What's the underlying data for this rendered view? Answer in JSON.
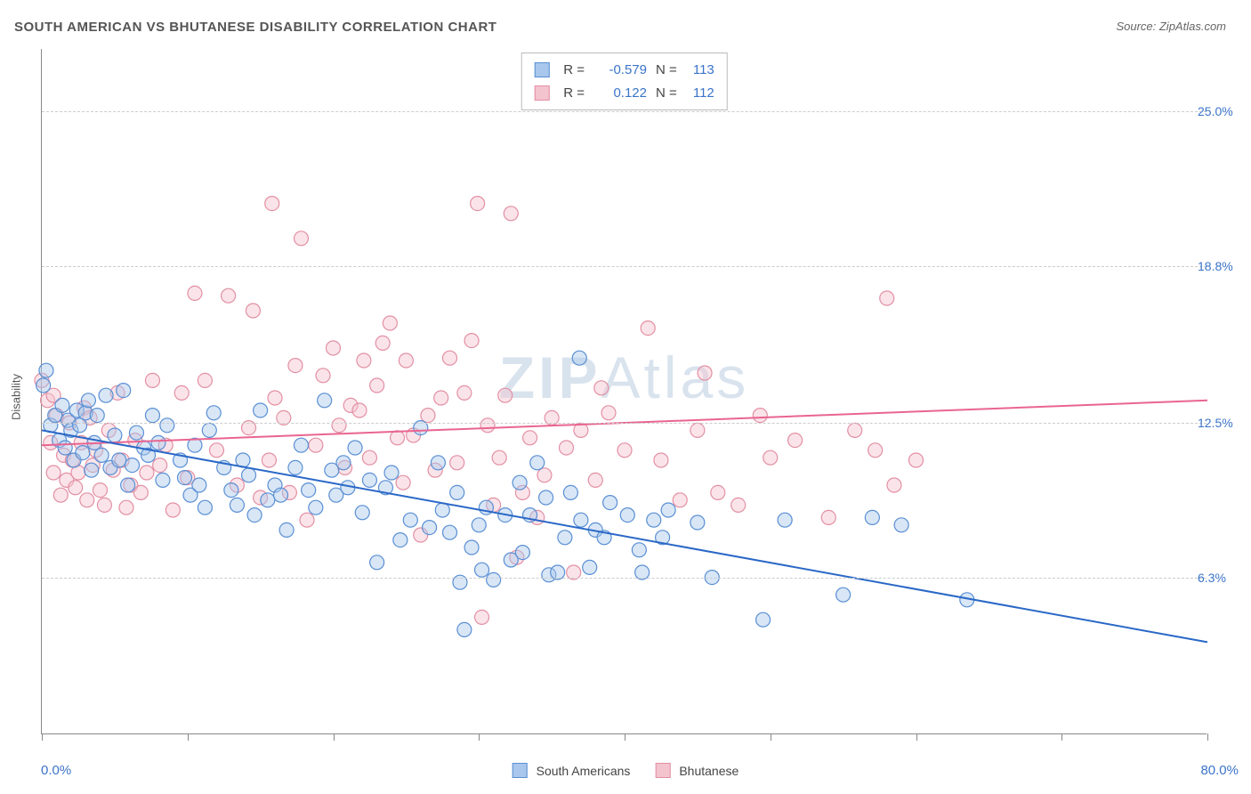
{
  "title": "SOUTH AMERICAN VS BHUTANESE DISABILITY CORRELATION CHART",
  "source_label": "Source: ZipAtlas.com",
  "y_axis_title": "Disability",
  "x_min_label": "0.0%",
  "x_max_label": "80.0%",
  "watermark_zip": "ZIP",
  "watermark_atlas": "Atlas",
  "chart": {
    "type": "scatter",
    "xlim": [
      0,
      80
    ],
    "ylim": [
      0,
      27.5
    ],
    "y_ticks": [
      6.3,
      12.5,
      18.8,
      25.0
    ],
    "y_tick_labels": [
      "6.3%",
      "12.5%",
      "18.8%",
      "25.0%"
    ],
    "x_ticks": [
      0,
      10,
      20,
      30,
      40,
      50,
      60,
      70,
      80
    ],
    "background_color": "#ffffff",
    "grid_color": "#cccccc",
    "marker_radius": 8,
    "marker_opacity": 0.45,
    "series": {
      "south_americans": {
        "label": "South Americans",
        "fill": "#a9c7ec",
        "stroke": "#5a8fd4",
        "trend_color": "#2a68c7",
        "trend_width": 2,
        "trend_start_y": 12.2,
        "trend_end_y": 3.7,
        "points": [
          [
            0.3,
            14.6
          ],
          [
            0.6,
            12.4
          ],
          [
            0.9,
            12.8
          ],
          [
            1.2,
            11.8
          ],
          [
            1.4,
            13.2
          ],
          [
            1.6,
            11.5
          ],
          [
            1.8,
            12.6
          ],
          [
            2.0,
            12.2
          ],
          [
            2.2,
            11.0
          ],
          [
            2.4,
            13.0
          ],
          [
            2.6,
            12.4
          ],
          [
            2.8,
            11.3
          ],
          [
            3.0,
            12.9
          ],
          [
            3.2,
            13.4
          ],
          [
            3.4,
            10.6
          ],
          [
            3.6,
            11.7
          ],
          [
            3.8,
            12.8
          ],
          [
            4.1,
            11.2
          ],
          [
            4.4,
            13.6
          ],
          [
            4.7,
            10.7
          ],
          [
            5.0,
            12.0
          ],
          [
            5.3,
            11.0
          ],
          [
            5.6,
            13.8
          ],
          [
            5.9,
            10.0
          ],
          [
            6.2,
            10.8
          ],
          [
            6.5,
            12.1
          ],
          [
            7.0,
            11.5
          ],
          [
            7.3,
            11.2
          ],
          [
            7.6,
            12.8
          ],
          [
            8.0,
            11.7
          ],
          [
            8.3,
            10.2
          ],
          [
            8.6,
            12.4
          ],
          [
            9.5,
            11.0
          ],
          [
            9.8,
            10.3
          ],
          [
            10.2,
            9.6
          ],
          [
            10.5,
            11.6
          ],
          [
            10.8,
            10.0
          ],
          [
            11.2,
            9.1
          ],
          [
            11.5,
            12.2
          ],
          [
            11.8,
            12.9
          ],
          [
            12.5,
            10.7
          ],
          [
            13.0,
            9.8
          ],
          [
            13.4,
            9.2
          ],
          [
            13.8,
            11.0
          ],
          [
            14.2,
            10.4
          ],
          [
            14.6,
            8.8
          ],
          [
            15.0,
            13.0
          ],
          [
            15.5,
            9.4
          ],
          [
            16.0,
            10.0
          ],
          [
            16.4,
            9.6
          ],
          [
            16.8,
            8.2
          ],
          [
            17.4,
            10.7
          ],
          [
            17.8,
            11.6
          ],
          [
            18.3,
            9.8
          ],
          [
            18.8,
            9.1
          ],
          [
            19.4,
            13.4
          ],
          [
            19.9,
            10.6
          ],
          [
            20.2,
            9.6
          ],
          [
            20.7,
            10.9
          ],
          [
            21.0,
            9.9
          ],
          [
            21.5,
            11.5
          ],
          [
            22.0,
            8.9
          ],
          [
            22.5,
            10.2
          ],
          [
            23.0,
            6.9
          ],
          [
            23.6,
            9.9
          ],
          [
            24.0,
            10.5
          ],
          [
            24.6,
            7.8
          ],
          [
            25.3,
            8.6
          ],
          [
            26.0,
            12.3
          ],
          [
            26.6,
            8.3
          ],
          [
            27.2,
            10.9
          ],
          [
            27.5,
            9.0
          ],
          [
            28.0,
            8.1
          ],
          [
            28.5,
            9.7
          ],
          [
            28.7,
            6.1
          ],
          [
            29.0,
            4.2
          ],
          [
            29.5,
            7.5
          ],
          [
            30.0,
            8.4
          ],
          [
            30.2,
            6.6
          ],
          [
            30.5,
            9.1
          ],
          [
            31.0,
            6.2
          ],
          [
            31.8,
            8.8
          ],
          [
            32.2,
            7.0
          ],
          [
            32.8,
            10.1
          ],
          [
            33.0,
            7.3
          ],
          [
            33.5,
            8.8
          ],
          [
            34.0,
            10.9
          ],
          [
            34.6,
            9.5
          ],
          [
            34.8,
            6.4
          ],
          [
            35.4,
            6.5
          ],
          [
            35.9,
            7.9
          ],
          [
            36.3,
            9.7
          ],
          [
            36.9,
            15.1
          ],
          [
            37.0,
            8.6
          ],
          [
            37.6,
            6.7
          ],
          [
            38.0,
            8.2
          ],
          [
            38.6,
            7.9
          ],
          [
            39.0,
            9.3
          ],
          [
            40.2,
            8.8
          ],
          [
            41.0,
            7.4
          ],
          [
            41.2,
            6.5
          ],
          [
            42.0,
            8.6
          ],
          [
            42.6,
            7.9
          ],
          [
            43.0,
            9.0
          ],
          [
            45.0,
            8.5
          ],
          [
            46.0,
            6.3
          ],
          [
            49.5,
            4.6
          ],
          [
            51.0,
            8.6
          ],
          [
            55.0,
            5.6
          ],
          [
            57.0,
            8.7
          ],
          [
            59.0,
            8.4
          ],
          [
            63.5,
            5.4
          ],
          [
            0.1,
            14.0
          ]
        ]
      },
      "bhutanese": {
        "label": "Bhutanese",
        "fill": "#f3c3ce",
        "stroke": "#e38fa3",
        "trend_color": "#e96590",
        "trend_width": 2,
        "trend_start_y": 11.6,
        "trend_end_y": 13.4,
        "points": [
          [
            0.4,
            13.4
          ],
          [
            0.6,
            11.7
          ],
          [
            0.8,
            10.5
          ],
          [
            1.0,
            12.8
          ],
          [
            1.3,
            9.6
          ],
          [
            1.5,
            11.2
          ],
          [
            1.7,
            10.2
          ],
          [
            1.9,
            12.5
          ],
          [
            2.1,
            11.0
          ],
          [
            2.3,
            9.9
          ],
          [
            2.5,
            10.5
          ],
          [
            2.7,
            11.7
          ],
          [
            2.9,
            13.1
          ],
          [
            3.1,
            9.4
          ],
          [
            3.3,
            12.7
          ],
          [
            3.5,
            10.8
          ],
          [
            3.7,
            11.4
          ],
          [
            4.0,
            9.8
          ],
          [
            4.3,
            9.2
          ],
          [
            4.6,
            12.2
          ],
          [
            4.9,
            10.6
          ],
          [
            5.2,
            13.7
          ],
          [
            5.5,
            11.0
          ],
          [
            5.8,
            9.1
          ],
          [
            6.1,
            10.0
          ],
          [
            6.4,
            11.8
          ],
          [
            6.8,
            9.7
          ],
          [
            7.2,
            10.5
          ],
          [
            7.6,
            14.2
          ],
          [
            8.1,
            10.8
          ],
          [
            8.5,
            11.6
          ],
          [
            9.0,
            9.0
          ],
          [
            9.6,
            13.7
          ],
          [
            10.0,
            10.3
          ],
          [
            10.5,
            17.7
          ],
          [
            11.2,
            14.2
          ],
          [
            12.0,
            11.4
          ],
          [
            12.8,
            17.6
          ],
          [
            13.4,
            10.0
          ],
          [
            14.2,
            12.3
          ],
          [
            14.5,
            17.0
          ],
          [
            15.0,
            9.5
          ],
          [
            15.6,
            11.0
          ],
          [
            15.8,
            21.3
          ],
          [
            16.0,
            13.5
          ],
          [
            16.6,
            12.7
          ],
          [
            17.0,
            9.7
          ],
          [
            17.4,
            14.8
          ],
          [
            17.8,
            19.9
          ],
          [
            18.2,
            8.6
          ],
          [
            18.8,
            11.6
          ],
          [
            19.3,
            14.4
          ],
          [
            20.0,
            15.5
          ],
          [
            20.4,
            12.4
          ],
          [
            20.8,
            10.7
          ],
          [
            21.2,
            13.2
          ],
          [
            21.8,
            13.0
          ],
          [
            22.1,
            15.0
          ],
          [
            22.5,
            11.1
          ],
          [
            23.0,
            14.0
          ],
          [
            23.4,
            15.7
          ],
          [
            23.9,
            16.5
          ],
          [
            24.4,
            11.9
          ],
          [
            24.8,
            10.1
          ],
          [
            25.0,
            15.0
          ],
          [
            25.5,
            12.0
          ],
          [
            26.0,
            8.0
          ],
          [
            26.5,
            12.8
          ],
          [
            27.0,
            10.6
          ],
          [
            27.4,
            13.5
          ],
          [
            28.0,
            15.1
          ],
          [
            28.5,
            10.9
          ],
          [
            29.0,
            13.7
          ],
          [
            29.5,
            15.8
          ],
          [
            29.9,
            21.3
          ],
          [
            30.2,
            4.7
          ],
          [
            30.6,
            12.4
          ],
          [
            31.0,
            9.2
          ],
          [
            31.4,
            11.1
          ],
          [
            31.8,
            13.6
          ],
          [
            32.2,
            20.9
          ],
          [
            32.6,
            7.1
          ],
          [
            33.0,
            9.7
          ],
          [
            33.5,
            11.9
          ],
          [
            34.0,
            8.7
          ],
          [
            34.5,
            10.4
          ],
          [
            35.0,
            12.7
          ],
          [
            36.0,
            11.5
          ],
          [
            36.5,
            6.5
          ],
          [
            37.0,
            12.2
          ],
          [
            38.0,
            10.2
          ],
          [
            38.4,
            13.9
          ],
          [
            38.9,
            12.9
          ],
          [
            40.0,
            11.4
          ],
          [
            41.6,
            16.3
          ],
          [
            42.5,
            11.0
          ],
          [
            43.8,
            9.4
          ],
          [
            45.0,
            12.2
          ],
          [
            45.5,
            14.5
          ],
          [
            46.4,
            9.7
          ],
          [
            47.8,
            9.2
          ],
          [
            49.3,
            12.8
          ],
          [
            50.0,
            11.1
          ],
          [
            51.7,
            11.8
          ],
          [
            54.0,
            8.7
          ],
          [
            55.8,
            12.2
          ],
          [
            57.2,
            11.4
          ],
          [
            58.0,
            17.5
          ],
          [
            58.5,
            10.0
          ],
          [
            60.0,
            11.0
          ],
          [
            0.0,
            14.2
          ],
          [
            0.8,
            13.6
          ]
        ]
      }
    }
  },
  "stat_box": {
    "row1": {
      "R_lbl": "R =",
      "R_val": "-0.579",
      "N_lbl": "N =",
      "N_val": "113"
    },
    "row2": {
      "R_lbl": "R =",
      "R_val": "0.122",
      "N_lbl": "N =",
      "N_val": "112"
    }
  },
  "bottom_legend": {
    "item1": "South Americans",
    "item2": "Bhutanese"
  }
}
